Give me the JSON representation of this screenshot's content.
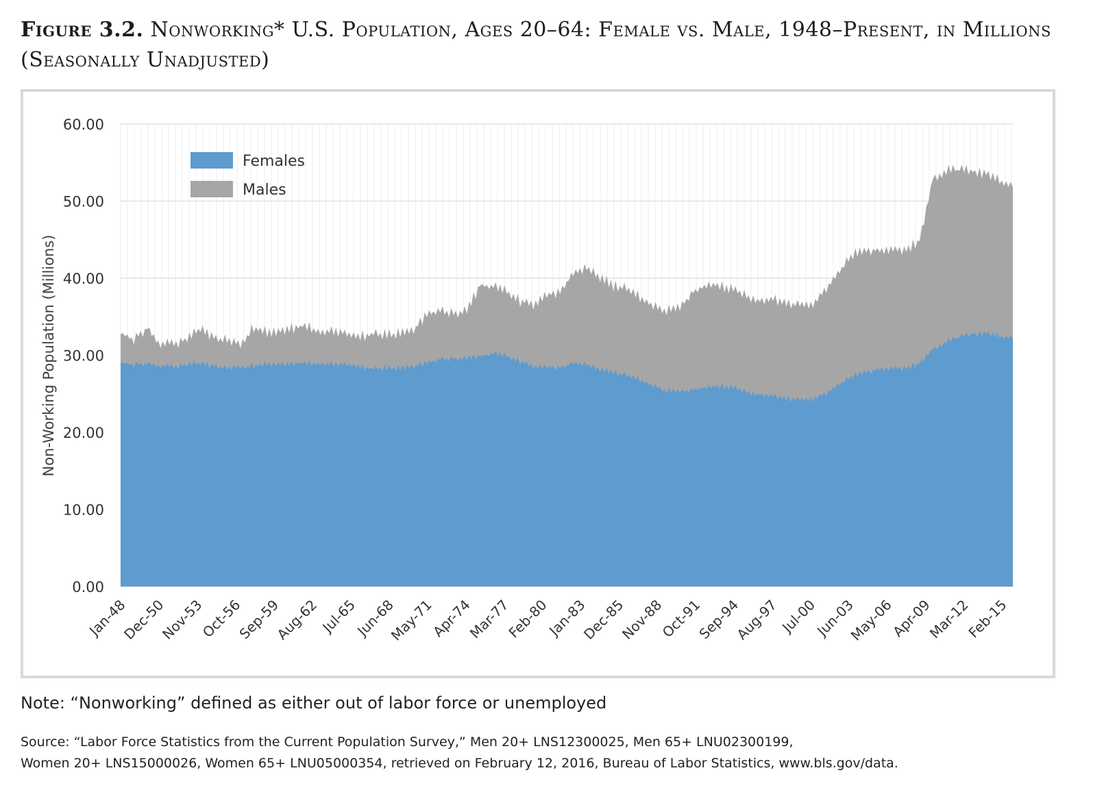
{
  "figure": {
    "label": "Figure 3.2.",
    "title": "Nonworking* U.S. Population, Ages 20–64: Female vs. Male, 1948–Present, in Millions (Seasonally Unadjusted)"
  },
  "note": "Note: “Nonworking” defined as either out of labor force or unemployed",
  "source": {
    "line1": "Source: “Labor Force Statistics from the Current Population Survey,” Men 20+ LNS12300025, Men 65+ LNU02300199,",
    "line2": "Women 20+ LNS15000026, Women 65+ LNU05000354, retrieved on February 12, 2016, Bureau of Labor Statistics, www.bls.gov/data."
  },
  "chart_data": {
    "type": "area",
    "stacked": true,
    "ylabel": "Non-Working Population (Millions)",
    "ylim": [
      0,
      60
    ],
    "yticks": [
      "0.00",
      "10.00",
      "20.00",
      "30.00",
      "40.00",
      "50.00",
      "60.00"
    ],
    "xticks": [
      "Jan-48",
      "Dec-50",
      "Nov-53",
      "Oct-56",
      "Sep-59",
      "Aug-62",
      "Jul-65",
      "Jun-68",
      "May-71",
      "Apr-74",
      "Mar-77",
      "Feb-80",
      "Jan-83",
      "Dec-85",
      "Nov-88",
      "Oct-91",
      "Sep-94",
      "Aug-97",
      "Jul-00",
      "Jun-03",
      "May-06",
      "Apr-09",
      "Mar-12",
      "Feb-15"
    ],
    "grid": true,
    "legend_position": "top-left",
    "x_start": "Jan-48",
    "x_end": "Dec-15",
    "x": [
      "1948",
      "1949",
      "1950",
      "1951",
      "1952",
      "1953",
      "1954",
      "1955",
      "1956",
      "1957",
      "1958",
      "1959",
      "1960",
      "1961",
      "1962",
      "1963",
      "1964",
      "1965",
      "1966",
      "1967",
      "1968",
      "1969",
      "1970",
      "1971",
      "1972",
      "1973",
      "1974",
      "1975",
      "1976",
      "1977",
      "1978",
      "1979",
      "1980",
      "1981",
      "1982",
      "1983",
      "1984",
      "1985",
      "1986",
      "1987",
      "1988",
      "1989",
      "1990",
      "1991",
      "1992",
      "1993",
      "1994",
      "1995",
      "1996",
      "1997",
      "1998",
      "1999",
      "2000",
      "2001",
      "2002",
      "2003",
      "2004",
      "2005",
      "2006",
      "2007",
      "2008",
      "2009",
      "2010",
      "2011",
      "2012",
      "2013",
      "2014",
      "2015"
    ],
    "series": [
      {
        "name": "Females",
        "color": "#5e9bcf",
        "values": [
          29.0,
          28.8,
          28.9,
          28.6,
          28.5,
          28.8,
          29.0,
          28.6,
          28.3,
          28.4,
          28.7,
          28.9,
          28.8,
          28.9,
          29.0,
          28.9,
          28.9,
          28.8,
          28.5,
          28.3,
          28.4,
          28.3,
          28.6,
          29.0,
          29.4,
          29.6,
          29.6,
          29.9,
          30.2,
          29.9,
          29.2,
          28.5,
          28.4,
          28.4,
          28.9,
          28.9,
          28.2,
          27.8,
          27.4,
          26.8,
          26.0,
          25.5,
          25.2,
          25.6,
          25.9,
          26.0,
          25.8,
          25.3,
          24.9,
          24.7,
          24.3,
          24.2,
          24.4,
          25.0,
          26.3,
          27.3,
          27.9,
          28.2,
          28.3,
          28.3,
          29.0,
          30.8,
          31.8,
          32.3,
          32.8,
          32.8,
          32.5,
          32.2
        ]
      },
      {
        "name": "Males",
        "color": "#a6a6a6",
        "values": [
          3.8,
          3.3,
          4.6,
          2.8,
          3.0,
          3.3,
          4.5,
          3.7,
          3.6,
          2.9,
          5.0,
          4.1,
          4.3,
          4.7,
          4.8,
          4.1,
          4.4,
          4.0,
          3.9,
          4.6,
          4.3,
          4.5,
          4.7,
          6.3,
          6.3,
          5.9,
          6.2,
          9.2,
          8.7,
          8.4,
          7.8,
          8.0,
          9.3,
          9.9,
          11.6,
          12.6,
          12.0,
          11.2,
          11.3,
          10.7,
          10.4,
          10.4,
          10.9,
          12.7,
          13.3,
          13.1,
          12.7,
          12.5,
          12.2,
          12.5,
          12.3,
          12.3,
          12.3,
          13.5,
          14.7,
          15.8,
          15.8,
          15.4,
          15.4,
          15.3,
          16.0,
          22.2,
          22.2,
          21.7,
          21.1,
          20.7,
          20.2,
          19.6
        ]
      }
    ]
  }
}
